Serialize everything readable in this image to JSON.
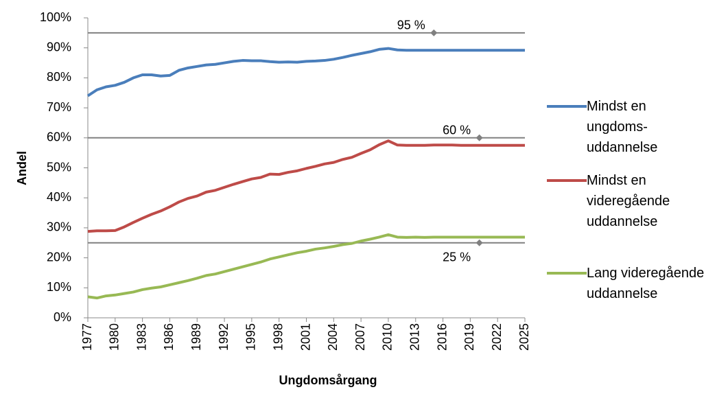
{
  "chart_data": {
    "type": "line",
    "x_label": "Ungdomsårgang",
    "y_label": "Andel",
    "x": [
      1977,
      1978,
      1979,
      1980,
      1981,
      1982,
      1983,
      1984,
      1985,
      1986,
      1987,
      1988,
      1989,
      1990,
      1991,
      1992,
      1993,
      1994,
      1995,
      1996,
      1997,
      1998,
      1999,
      2000,
      2001,
      2002,
      2003,
      2004,
      2005,
      2006,
      2007,
      2008,
      2009,
      2010,
      2011,
      2012,
      2013,
      2014,
      2015,
      2016,
      2017,
      2018,
      2019,
      2020,
      2021,
      2022,
      2023,
      2024,
      2025
    ],
    "xlim": [
      1977,
      2025
    ],
    "xticks": [
      1977,
      1980,
      1983,
      1986,
      1989,
      1992,
      1995,
      1998,
      2001,
      2004,
      2007,
      2010,
      2013,
      2016,
      2019,
      2022,
      2025
    ],
    "ylim": [
      0,
      100
    ],
    "yticks": [
      {
        "value": 0,
        "label": "0%"
      },
      {
        "value": 10,
        "label": "10%"
      },
      {
        "value": 20,
        "label": "20%"
      },
      {
        "value": 30,
        "label": "30%"
      },
      {
        "value": 40,
        "label": "40%"
      },
      {
        "value": 50,
        "label": "50%"
      },
      {
        "value": 60,
        "label": "60%"
      },
      {
        "value": 70,
        "label": "70%"
      },
      {
        "value": 80,
        "label": "80%"
      },
      {
        "value": 90,
        "label": "90%"
      },
      {
        "value": 100,
        "label": "100%"
      }
    ],
    "series": [
      {
        "name": "Mindst en ungdoms-uddannelse",
        "color": "#4a7ebb",
        "values": [
          74,
          76,
          77,
          77.5,
          78.5,
          80,
          81,
          81,
          80.6,
          80.8,
          82.5,
          83.3,
          83.8,
          84.3,
          84.5,
          85,
          85.5,
          85.8,
          85.7,
          85.7,
          85.4,
          85.2,
          85.3,
          85.2,
          85.5,
          85.6,
          85.8,
          86.2,
          86.8,
          87.5,
          88.1,
          88.7,
          89.5,
          89.8,
          89.3,
          89.2,
          89.2,
          89.2,
          89.2,
          89.2,
          89.2,
          89.2,
          89.2,
          89.2,
          89.2,
          89.2,
          89.2,
          89.2,
          89.2
        ]
      },
      {
        "name": "Mindst en videregående uddannelse",
        "color": "#be4b48",
        "values": [
          28.8,
          29,
          29,
          29.1,
          30.3,
          31.8,
          33.2,
          34.5,
          35.6,
          37,
          38.6,
          39.8,
          40.6,
          41.9,
          42.5,
          43.5,
          44.5,
          45.4,
          46.3,
          46.8,
          47.9,
          47.8,
          48.5,
          49,
          49.8,
          50.5,
          51.3,
          51.8,
          52.8,
          53.5,
          54.8,
          56,
          57.7,
          59,
          57.6,
          57.5,
          57.5,
          57.5,
          57.6,
          57.6,
          57.6,
          57.5,
          57.5,
          57.5,
          57.5,
          57.5,
          57.5,
          57.5,
          57.5
        ]
      },
      {
        "name": "Lang videregående uddannelse",
        "color": "#98b954",
        "values": [
          7,
          6.6,
          7.3,
          7.6,
          8.1,
          8.6,
          9.4,
          9.9,
          10.3,
          11,
          11.7,
          12.4,
          13.2,
          14.1,
          14.6,
          15.4,
          16.2,
          17,
          17.8,
          18.6,
          19.6,
          20.3,
          21,
          21.7,
          22.2,
          22.9,
          23.3,
          23.8,
          24.4,
          24.8,
          25.6,
          26.2,
          26.9,
          27.7,
          26.9,
          26.8,
          26.9,
          26.8,
          26.9,
          26.9,
          26.9,
          26.9,
          26.9,
          26.9,
          26.9,
          26.9,
          26.9,
          26.9,
          26.9
        ]
      }
    ],
    "annotations": [
      {
        "label": "95 %",
        "value": 95,
        "x": 2015
      },
      {
        "label": "60 %",
        "value": 60,
        "x": 2020
      },
      {
        "label": "25 %",
        "value": 25,
        "x": 2020
      }
    ]
  }
}
